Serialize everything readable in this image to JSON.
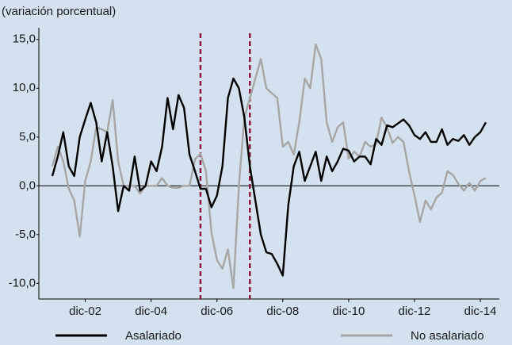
{
  "chart_data": {
    "type": "line",
    "title": "(variación porcentual)",
    "categories": [
      null,
      null,
      null,
      null,
      null,
      null,
      "dic-02",
      null,
      null,
      null,
      null,
      null,
      null,
      null,
      null,
      null,
      null,
      null,
      "dic-04",
      null,
      null,
      null,
      null,
      null,
      null,
      null,
      null,
      null,
      null,
      null,
      "dic-06",
      null,
      null,
      null,
      null,
      null,
      null,
      null,
      null,
      null,
      null,
      null,
      "dic-08",
      null,
      null,
      null,
      null,
      null,
      null,
      null,
      null,
      null,
      null,
      null,
      "dic-10",
      null,
      null,
      null,
      null,
      null,
      null,
      null,
      null,
      null,
      null,
      null,
      "dic-12",
      null,
      null,
      null,
      null,
      null,
      null,
      null,
      null,
      null,
      null,
      null,
      "dic-14",
      null
    ],
    "series": [
      {
        "name": "Asalariado",
        "color": "#000000",
        "values": [
          1,
          3,
          5.5,
          2,
          1,
          5,
          6.8,
          8.5,
          6.5,
          2.5,
          5.5,
          2,
          -2.6,
          0,
          -0.5,
          3,
          -0.5,
          0,
          2.5,
          1.5,
          4,
          9,
          5.8,
          9.3,
          8,
          3.2,
          1.5,
          -0.3,
          -0.3,
          -2.2,
          -1,
          2,
          9,
          11,
          10,
          7,
          2,
          -1.5,
          -5,
          -6.8,
          -7,
          -8,
          -9.2,
          -2,
          2,
          3.5,
          0.5,
          2,
          3.5,
          0.5,
          3,
          1.5,
          2.5,
          3.8,
          3.6,
          2.5,
          3,
          3,
          2.2,
          4.8,
          4.2,
          6.2,
          6,
          6.4,
          6.8,
          6.2,
          5.2,
          4.8,
          5.5,
          4.5,
          4.5,
          5.8,
          4.2,
          4.8,
          4.6,
          5.2,
          4.2,
          5,
          5.5,
          6.5
        ]
      },
      {
        "name": "No asalariado",
        "color": "#a6a6a6",
        "values": [
          2,
          4,
          2.5,
          -0.3,
          -1.5,
          -5.2,
          0.5,
          2.5,
          6,
          5.8,
          5.5,
          8.8,
          2.5,
          0,
          0,
          0,
          -0.8,
          0,
          0,
          0,
          0.8,
          0,
          -0.2,
          -0.2,
          0,
          0,
          2.7,
          3.3,
          1.5,
          -4.8,
          -7.6,
          -8.5,
          -6.5,
          -10.5,
          0,
          7,
          9,
          11,
          13,
          10,
          9.5,
          9,
          4,
          4.5,
          3.2,
          6.5,
          11,
          10,
          14.5,
          13,
          6.5,
          4.5,
          6,
          6.5,
          2.8,
          3.5,
          3,
          4.5,
          4,
          4.3,
          7,
          6,
          4.4,
          5,
          4.5,
          1.5,
          -1,
          -3.7,
          -1.5,
          -2.4,
          -1.2,
          -0.7,
          1.5,
          1.1,
          0.2,
          -0.5,
          0.3,
          -0.5,
          0.5,
          0.8
        ]
      }
    ],
    "ylim": [
      -11.6,
      16.2
    ],
    "yticks": [
      {
        "value": -10,
        "label": "-10,0"
      },
      {
        "value": -5,
        "label": "-5,0"
      },
      {
        "value": 0,
        "label": "0,0"
      },
      {
        "value": 5,
        "label": "5,0"
      },
      {
        "value": 10,
        "label": "10,0"
      },
      {
        "value": 15,
        "label": "15,0"
      }
    ],
    "reference_line": 0,
    "vertical_lines": [
      27,
      36
    ],
    "vertical_line_color": "#8b1a3c",
    "legend": "bottom"
  }
}
